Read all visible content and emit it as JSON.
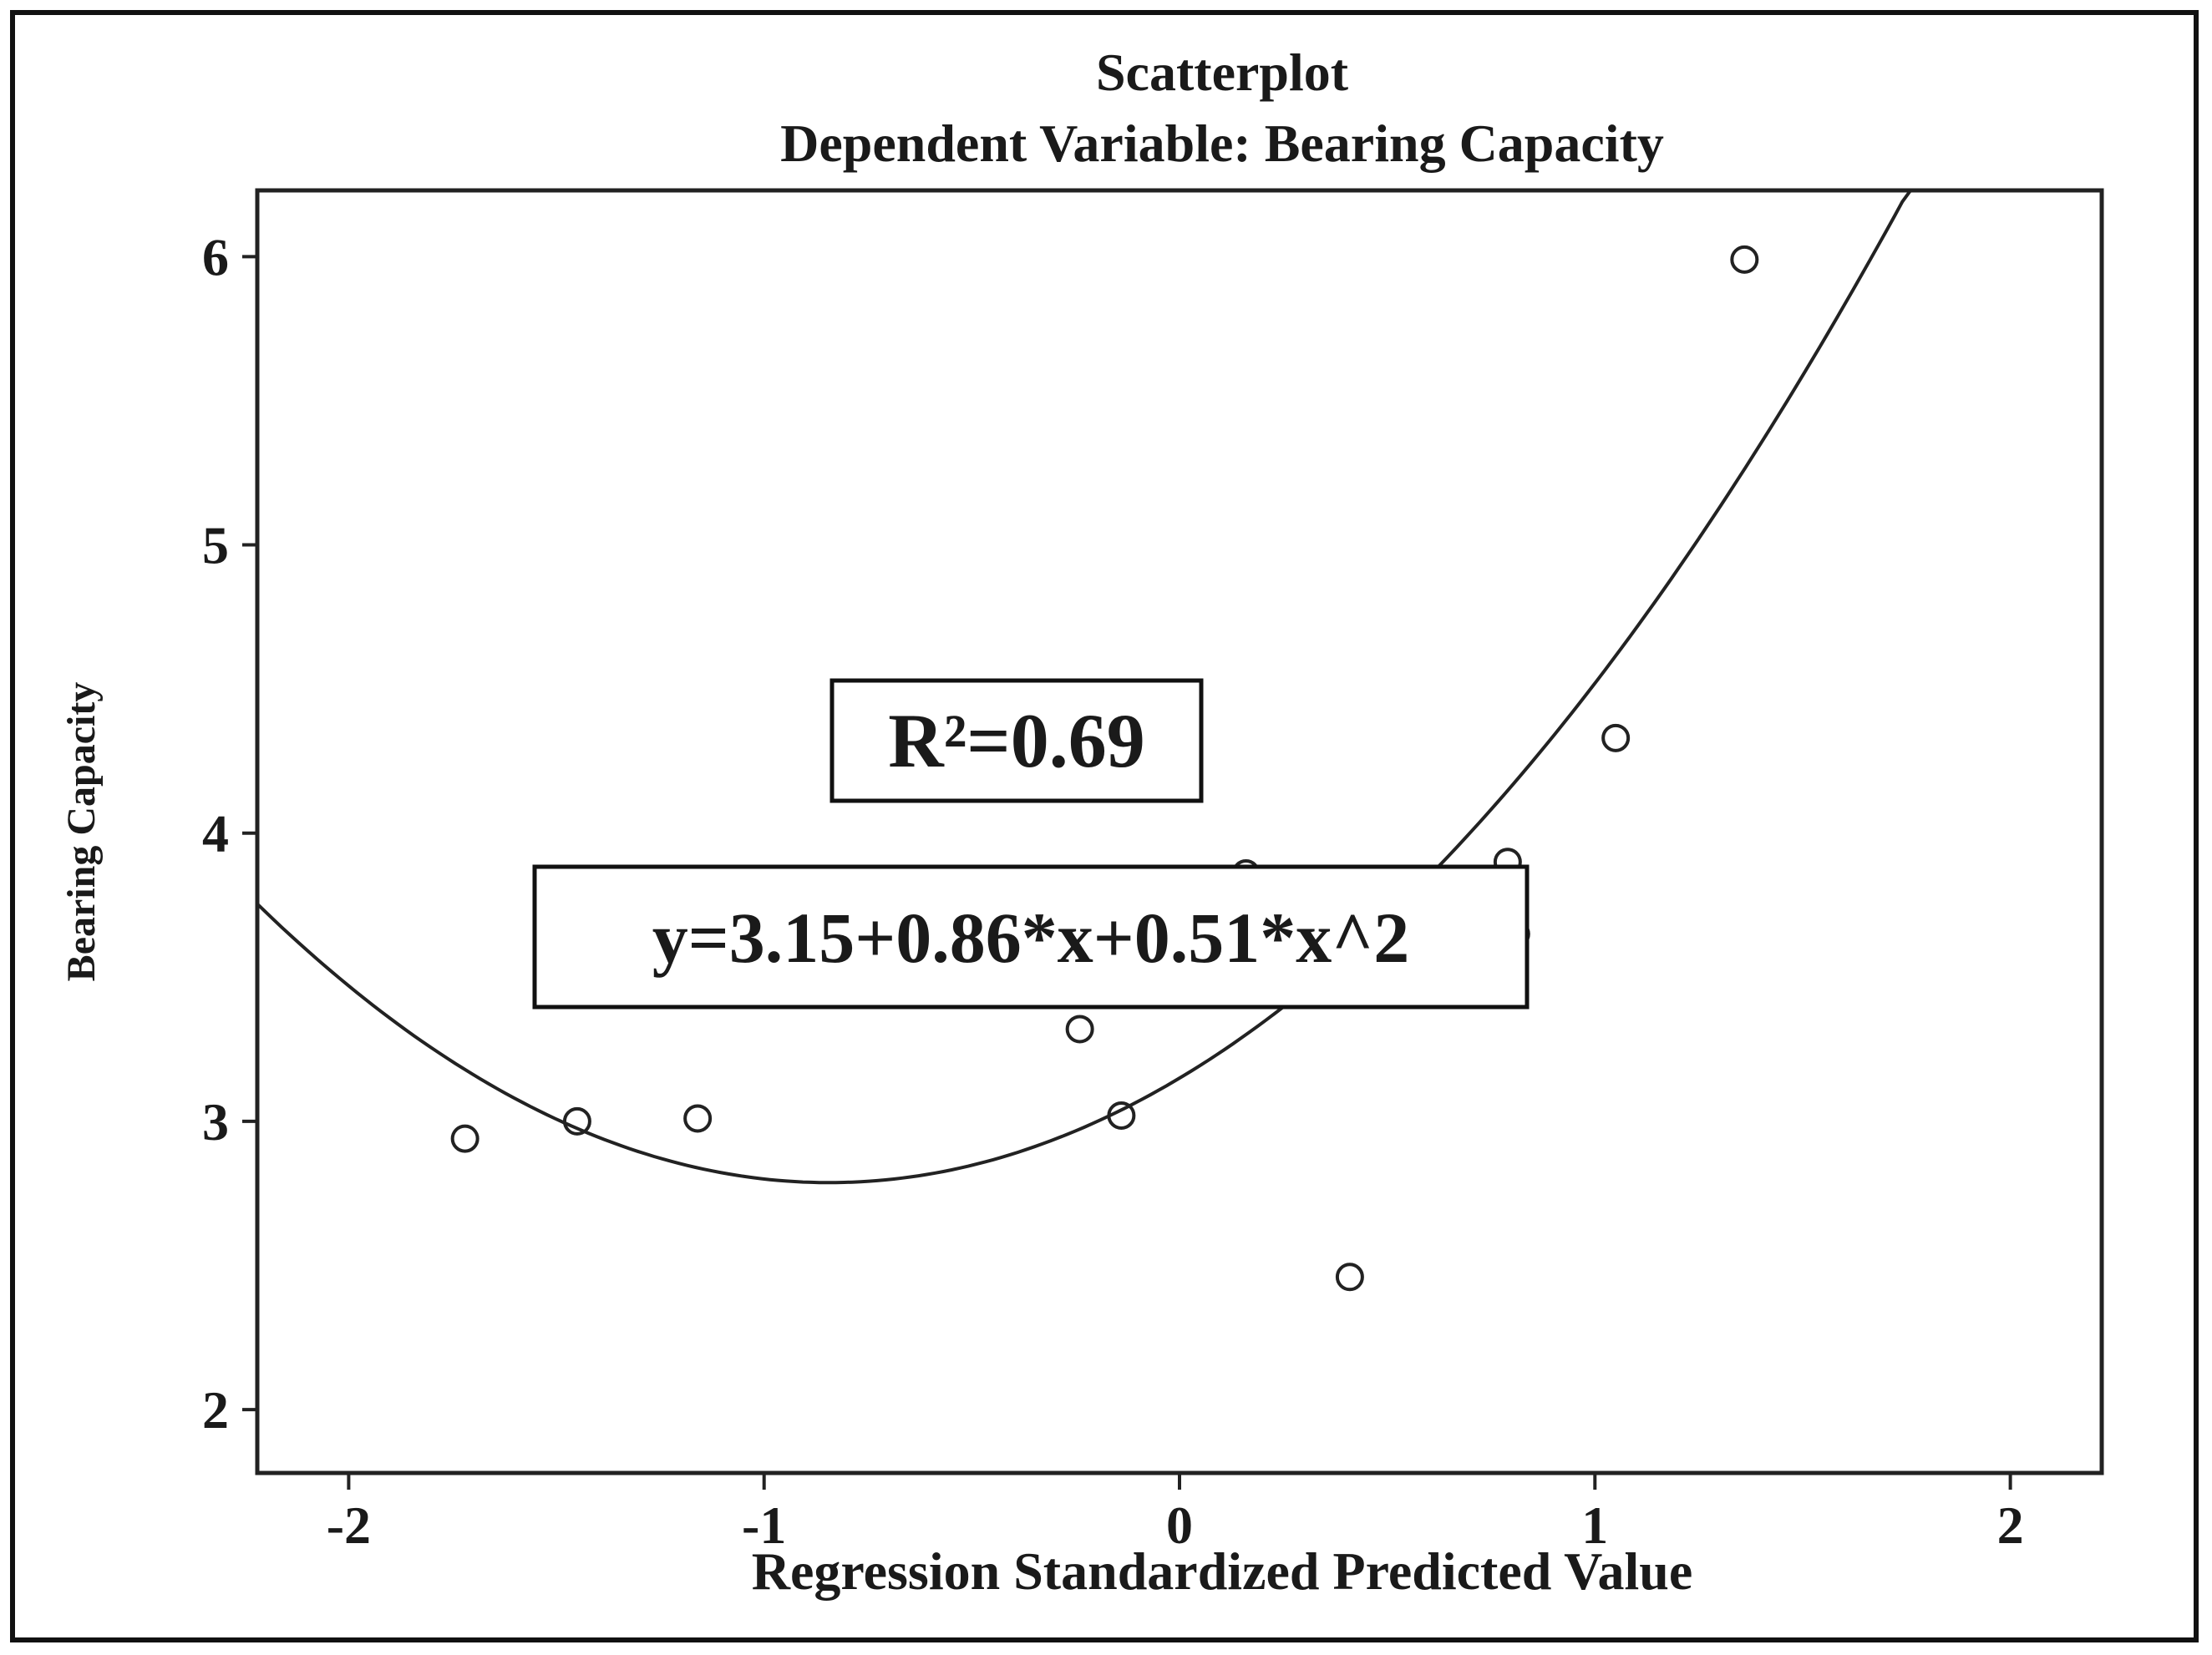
{
  "chart_data": {
    "type": "scatter",
    "title": "Scatterplot",
    "subtitle": "Dependent Variable: Bearing Capacity",
    "xlabel": "Regression Standardized Predicted Value",
    "ylabel": "Bearing Capacity",
    "xlim": [
      -2.22,
      2.22
    ],
    "ylim": [
      1.78,
      6.23
    ],
    "xticks": [
      -2,
      -1,
      0,
      1,
      2
    ],
    "xtick_labels": [
      "-2",
      "-1",
      "0",
      "1",
      "2"
    ],
    "yticks": [
      2,
      3,
      4,
      5,
      6
    ],
    "ytick_labels": [
      "2",
      "3",
      "4",
      "5",
      "6"
    ],
    "points": [
      {
        "x": -1.72,
        "y": 2.94
      },
      {
        "x": -1.45,
        "y": 3.0
      },
      {
        "x": -1.16,
        "y": 3.01
      },
      {
        "x": -0.24,
        "y": 3.32
      },
      {
        "x": -0.14,
        "y": 3.02
      },
      {
        "x": 0.16,
        "y": 3.86
      },
      {
        "x": 0.41,
        "y": 2.46
      },
      {
        "x": 0.79,
        "y": 3.9
      },
      {
        "x": 0.81,
        "y": 3.65
      },
      {
        "x": 1.05,
        "y": 4.33
      },
      {
        "x": 1.36,
        "y": 5.99
      }
    ],
    "fit": {
      "type": "quadratic",
      "intercept": 3.15,
      "linear": 0.86,
      "quadratic": 0.51,
      "x_range": [
        -2.22,
        1.76
      ]
    },
    "annotations": {
      "r2_label": "R²=0.69",
      "equation_label": "y=3.15+0.86*x+0.51*x^2"
    },
    "grid": false,
    "legend": "none"
  }
}
